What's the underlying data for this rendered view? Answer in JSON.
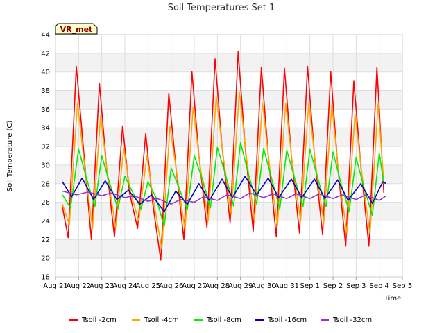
{
  "chart_data": {
    "type": "line",
    "title": "Soil Temperatures Set 1",
    "xlabel": "Time",
    "ylabel": "Soil Temperature (C)",
    "badge": "VR_met",
    "ylim": [
      18,
      44
    ],
    "yticks": [
      18,
      20,
      22,
      24,
      26,
      28,
      30,
      32,
      34,
      36,
      38,
      40,
      42,
      44
    ],
    "xlim": [
      0,
      15
    ],
    "xticks": [
      {
        "label": "Aug 21",
        "x": 0
      },
      {
        "label": "Aug 22",
        "x": 1
      },
      {
        "label": "Aug 23",
        "x": 2
      },
      {
        "label": "Aug 24",
        "x": 3
      },
      {
        "label": "Aug 25",
        "x": 4
      },
      {
        "label": "Aug 26",
        "x": 5
      },
      {
        "label": "Aug 27",
        "x": 6
      },
      {
        "label": "Aug 28",
        "x": 7
      },
      {
        "label": "Aug 29",
        "x": 8
      },
      {
        "label": "Aug 30",
        "x": 9
      },
      {
        "label": "Aug 31",
        "x": 10
      },
      {
        "label": "Sep 1",
        "x": 11
      },
      {
        "label": "Sep 2",
        "x": 12
      },
      {
        "label": "Sep 3",
        "x": 13
      },
      {
        "label": "Sep 4",
        "x": 14
      },
      {
        "label": "Sep 5",
        "x": 15
      }
    ],
    "grid": true,
    "legend_position": "bottom",
    "series": [
      {
        "name": "Tsoil -2cm",
        "color": "#ff0000",
        "x": [
          0.3,
          0.55,
          0.9,
          1.2,
          1.55,
          1.9,
          2.2,
          2.55,
          2.9,
          3.2,
          3.55,
          3.9,
          4.2,
          4.55,
          4.9,
          5.2,
          5.55,
          5.9,
          6.2,
          6.55,
          6.9,
          7.2,
          7.55,
          7.9,
          8.2,
          8.55,
          8.9,
          9.2,
          9.55,
          9.9,
          10.2,
          10.55,
          10.9,
          11.2,
          11.55,
          11.9,
          12.2,
          12.55,
          12.9,
          13.2,
          13.55,
          13.9,
          14.2
        ],
        "y": [
          25.5,
          22.2,
          40.6,
          32,
          22,
          38.8,
          30,
          22.3,
          34.2,
          27,
          23.2,
          33.4,
          26,
          19.8,
          37.7,
          30,
          22,
          40,
          31,
          23.3,
          41.4,
          32,
          23.8,
          42.2,
          32,
          22.9,
          40.5,
          31,
          22.3,
          40.4,
          31,
          22.7,
          40.6,
          31,
          22.5,
          40,
          30,
          21.3,
          39,
          30,
          21.3,
          40.5,
          27
        ]
      },
      {
        "name": "Tsoil -4cm",
        "color": "#ffa500",
        "x": [
          0.3,
          0.6,
          0.95,
          1.25,
          1.6,
          1.95,
          2.25,
          2.6,
          2.95,
          3.25,
          3.6,
          3.95,
          4.25,
          4.6,
          4.95,
          5.25,
          5.6,
          5.95,
          6.25,
          6.6,
          6.95,
          7.25,
          7.6,
          7.95,
          8.25,
          8.6,
          8.95,
          9.25,
          9.6,
          9.95,
          10.25,
          10.6,
          10.95,
          11.25,
          11.6,
          11.95,
          12.25,
          12.6,
          12.95,
          13.25,
          13.6,
          13.95,
          14.2
        ],
        "y": [
          25.8,
          23.6,
          36.7,
          30,
          23.2,
          35.3,
          29,
          23.3,
          31.8,
          27,
          24,
          31,
          26,
          21,
          34.2,
          29,
          23,
          36.2,
          30,
          24,
          37.4,
          31,
          24.7,
          37.9,
          31,
          24,
          36.7,
          30,
          23.5,
          36.6,
          30,
          24,
          36.7,
          30,
          23.8,
          36.5,
          29,
          22.7,
          35.5,
          29,
          22.6,
          36.6,
          28
        ]
      },
      {
        "name": "Tsoil -8cm",
        "color": "#00ee00",
        "x": [
          0.3,
          0.65,
          1.0,
          1.35,
          1.7,
          2.0,
          2.35,
          2.7,
          3.0,
          3.35,
          3.7,
          4.0,
          4.35,
          4.7,
          5.0,
          5.35,
          5.7,
          6.0,
          6.35,
          6.7,
          7.0,
          7.35,
          7.7,
          8.0,
          8.35,
          8.7,
          9.0,
          9.35,
          9.7,
          10.0,
          10.35,
          10.7,
          11.0,
          11.35,
          11.7,
          12.0,
          12.35,
          12.7,
          13.0,
          13.35,
          13.7,
          14.0,
          14.2
        ],
        "y": [
          26.8,
          25.4,
          31.7,
          28.5,
          25.5,
          31,
          28,
          25.3,
          28.8,
          27,
          25.3,
          28.2,
          26.5,
          23.4,
          29.7,
          27.5,
          25.2,
          31,
          28.5,
          25.4,
          31.9,
          29,
          25.6,
          32.4,
          29,
          25.8,
          31.8,
          28.5,
          25.3,
          31.6,
          28.5,
          25.5,
          31.7,
          28.5,
          25.5,
          31.4,
          28,
          25,
          30.8,
          27.5,
          24.6,
          31.3,
          28
        ]
      },
      {
        "name": "Tsoil -16cm",
        "color": "#0000cc",
        "x": [
          0.3,
          0.7,
          1.15,
          1.65,
          2.15,
          2.65,
          3.15,
          3.65,
          4.15,
          4.7,
          5.2,
          5.7,
          6.2,
          6.65,
          7.2,
          7.65,
          8.2,
          8.7,
          9.2,
          9.65,
          10.2,
          10.65,
          11.2,
          11.65,
          12.2,
          12.65,
          13.2,
          13.7,
          14.15,
          14.3
        ],
        "y": [
          28.2,
          26.6,
          28.6,
          26.3,
          28.3,
          26.3,
          27.3,
          25.8,
          26.8,
          25,
          27.2,
          25.8,
          28,
          26.2,
          28.5,
          26.5,
          28.8,
          26.8,
          28.6,
          26.5,
          28.5,
          26.5,
          28.5,
          26.4,
          28.4,
          26.2,
          28,
          25.9,
          28.2,
          28
        ]
      },
      {
        "name": "Tsoil -32cm",
        "color": "#9933cc",
        "x": [
          0.3,
          0.9,
          1.4,
          2.0,
          2.4,
          3.0,
          3.4,
          4.0,
          4.4,
          5.0,
          5.4,
          6.0,
          6.4,
          7.0,
          7.4,
          8.0,
          8.4,
          9.0,
          9.4,
          10.0,
          10.4,
          11.0,
          11.4,
          12.0,
          12.4,
          13.0,
          13.4,
          14.0,
          14.3
        ],
        "y": [
          27.2,
          26.8,
          27.1,
          26.7,
          27,
          26.5,
          26.7,
          26.1,
          26.4,
          25.8,
          26.3,
          26,
          26.6,
          26.2,
          26.8,
          26.4,
          27,
          26.5,
          26.9,
          26.4,
          26.9,
          26.4,
          26.9,
          26.4,
          26.8,
          26.3,
          26.8,
          26.2,
          26.7
        ]
      }
    ]
  }
}
